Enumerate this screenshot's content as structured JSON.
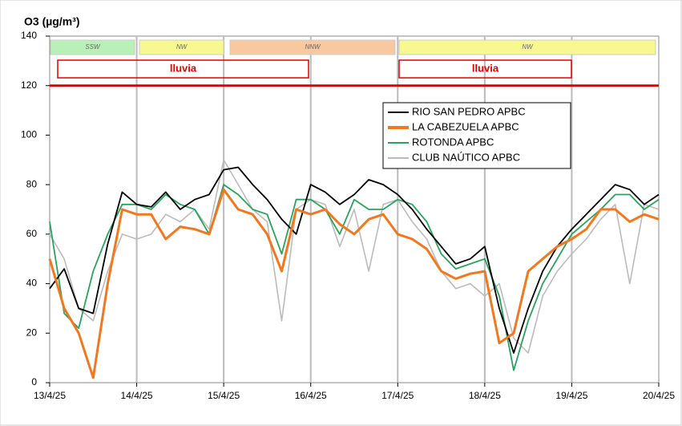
{
  "chart_data": {
    "type": "line",
    "title": "O3 (µg/m³)",
    "categories": [
      "13/4/25",
      null,
      null,
      null,
      null,
      null,
      "14/4/25",
      null,
      null,
      null,
      null,
      null,
      "15/4/25",
      null,
      null,
      null,
      null,
      null,
      "16/4/25",
      null,
      null,
      null,
      null,
      null,
      "17/4/25",
      null,
      null,
      null,
      null,
      null,
      "18/4/25",
      null,
      null,
      null,
      null,
      null,
      "19/4/25",
      null,
      null,
      null,
      null,
      null,
      "20/4/25"
    ],
    "series": [
      {
        "name": "RIO SAN PEDRO APBC",
        "color": "#000000",
        "values": [
          38,
          46,
          30,
          28,
          56,
          77,
          72,
          71,
          77,
          70,
          74,
          76,
          86,
          87,
          80,
          74,
          66,
          60,
          80,
          77,
          72,
          76,
          82,
          80,
          76,
          70,
          62,
          55,
          48,
          50,
          55,
          30,
          12,
          30,
          45,
          55,
          62,
          68,
          74,
          80,
          78,
          72,
          76
        ]
      },
      {
        "name": "LA CABEZUELA  APBC",
        "color": "#f07820",
        "values": [
          50,
          30,
          20,
          2,
          40,
          70,
          68,
          68,
          58,
          63,
          62,
          60,
          78,
          70,
          68,
          60,
          45,
          70,
          68,
          70,
          64,
          60,
          66,
          68,
          60,
          58,
          54,
          45,
          42,
          44,
          45,
          16,
          20,
          45,
          50,
          55,
          58,
          62,
          70,
          70,
          65,
          68,
          66
        ]
      },
      {
        "name": "ROTONDA  APBC",
        "color": "#2ca060",
        "values": [
          65,
          28,
          22,
          45,
          60,
          72,
          72,
          70,
          76,
          72,
          70,
          60,
          80,
          76,
          70,
          68,
          52,
          74,
          74,
          70,
          60,
          74,
          70,
          70,
          74,
          72,
          65,
          52,
          46,
          48,
          50,
          35,
          5,
          25,
          40,
          50,
          60,
          65,
          70,
          76,
          76,
          70,
          74
        ]
      },
      {
        "name": "CLUB NAÚTICO  APBC",
        "color": "#bbbbbb",
        "values": [
          60,
          50,
          30,
          25,
          45,
          60,
          58,
          60,
          68,
          65,
          70,
          62,
          90,
          80,
          70,
          65,
          25,
          70,
          74,
          72,
          55,
          70,
          45,
          72,
          74,
          65,
          58,
          45,
          38,
          40,
          35,
          40,
          18,
          12,
          35,
          45,
          52,
          58,
          66,
          72,
          40,
          72,
          70
        ]
      }
    ],
    "threshold": 120,
    "threshold_color": "#e00000",
    "wind_periods": [
      "SSW",
      "NW",
      "NNW",
      "NW"
    ],
    "rain_periods": [
      "lluvia",
      "lluvia"
    ],
    "ylim": [
      0,
      140
    ],
    "yticks": [
      0,
      20,
      40,
      60,
      80,
      100,
      120,
      140
    ],
    "grid": true,
    "legend": "upper right"
  }
}
